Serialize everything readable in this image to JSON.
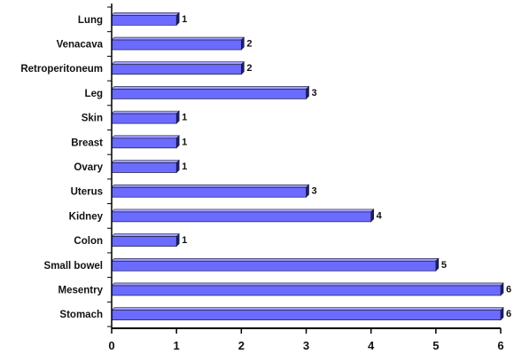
{
  "chart_data": {
    "type": "bar",
    "orientation": "horizontal",
    "categories": [
      "Lung",
      "Venacava",
      "Retroperitoneum",
      "Leg",
      "Skin",
      "Breast",
      "Ovary",
      "Uterus",
      "Kidney",
      "Colon",
      "Small bowel",
      "Mesentry",
      "Stomach"
    ],
    "values": [
      1,
      2,
      2,
      3,
      1,
      1,
      1,
      3,
      4,
      1,
      5,
      6,
      6
    ],
    "data_labels": [
      "1",
      "2",
      "2",
      "3",
      "1",
      "1",
      "1",
      "3",
      "4",
      "1",
      "5",
      "6",
      "6"
    ],
    "xlim": [
      0,
      6
    ],
    "x_ticks": [
      0,
      1,
      2,
      3,
      4,
      5,
      6
    ],
    "grid": false,
    "legend": "none",
    "colors": {
      "bar_front": "#6b6bff",
      "bar_top": "#a0a0ff",
      "bar_side": "#1c1c6e",
      "bar_stroke": "#1a1a3a",
      "axis": "#000000"
    }
  }
}
